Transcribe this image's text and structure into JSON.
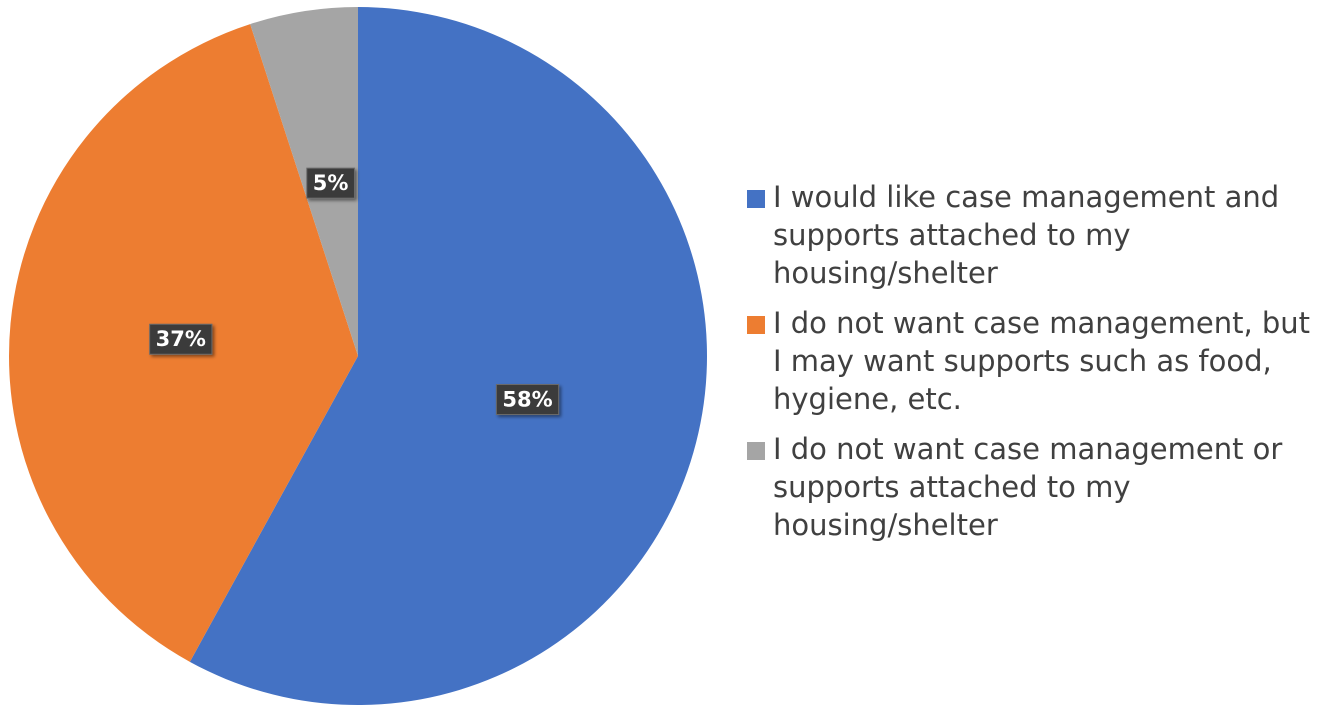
{
  "chart_data": {
    "type": "pie",
    "start_angle": "12 o'clock",
    "direction": "clockwise",
    "legend_position": "right",
    "slices": [
      {
        "label": "I would like case management and supports attached to my housing/shelter",
        "value": 58,
        "display": "58%",
        "color": "#4472C4"
      },
      {
        "label": "I do not want case management, but I may want supports such as food, hygiene, etc.",
        "value": 37,
        "display": "37%",
        "color": "#ED7D31"
      },
      {
        "label": "I do not want case management or supports attached to my housing/shelter",
        "value": 5,
        "display": "5%",
        "color": "#A5A5A5"
      }
    ]
  }
}
